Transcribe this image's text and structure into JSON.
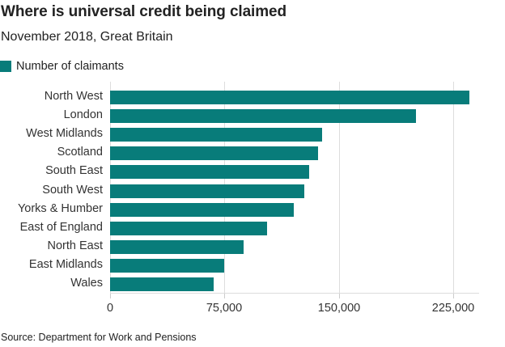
{
  "header": {
    "title": "Where is universal credit being claimed",
    "subtitle": "November 2018, Great Britain"
  },
  "legend": {
    "label": "Number of claimants",
    "color": "#087c7a"
  },
  "axis": {
    "ticks": [
      "0",
      "75,000",
      "150,000",
      "225,000"
    ]
  },
  "source": "Source: Department for Work and Pensions",
  "chart_data": {
    "type": "bar",
    "orientation": "horizontal",
    "title": "Where is universal credit being claimed",
    "subtitle": "November 2018, Great Britain",
    "categories": [
      "North West",
      "London",
      "West Midlands",
      "Scotland",
      "South East",
      "South West",
      "Yorks & Humber",
      "East of England",
      "North East",
      "East Midlands",
      "Wales"
    ],
    "series": [
      {
        "name": "Number of claimants",
        "color": "#087c7a",
        "values": [
          235700,
          200500,
          138900,
          136400,
          130600,
          127400,
          120500,
          103000,
          87600,
          74800,
          67900
        ]
      }
    ],
    "xlabel": "",
    "ylabel": "",
    "xlim": [
      0,
      242000
    ],
    "xticks": [
      0,
      75000,
      150000,
      225000
    ],
    "grid": "vertical",
    "legend_position": "top-left",
    "source": "Source: Department for Work and Pensions"
  }
}
